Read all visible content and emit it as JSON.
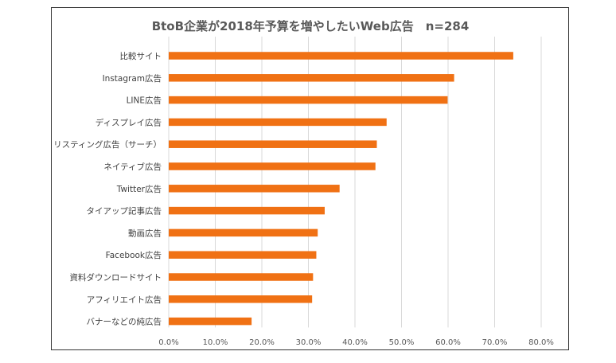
{
  "chart_data": {
    "type": "bar",
    "orientation": "horizontal",
    "title": "BtoB企業が2018年予算を増やしたいWeb広告　n=284",
    "categories": [
      "比較サイト",
      "Instagram広告",
      "LINE広告",
      "ディスプレイ広告",
      "リスティング広告（サーチ）",
      "ネイティブ広告",
      "Twitter広告",
      "タイアップ記事広告",
      "動画広告",
      "Facebook広告",
      "資料ダウンロードサイト",
      "アフィリエイト広告",
      "バナーなどの純広告"
    ],
    "values": [
      74.0,
      61.3,
      59.9,
      46.8,
      44.7,
      44.4,
      36.7,
      33.5,
      32.0,
      31.7,
      31.0,
      30.8,
      17.8
    ],
    "xlim": [
      0,
      80
    ],
    "ticks": [
      "0.0%",
      "10.0%",
      "20.0%",
      "30.0%",
      "40.0%",
      "50.0%",
      "60.0%",
      "70.0%",
      "80.0%"
    ],
    "grid": "vertical",
    "legend": "none",
    "bar_color": "#f07114",
    "grid_color": "#d9d9d9"
  }
}
